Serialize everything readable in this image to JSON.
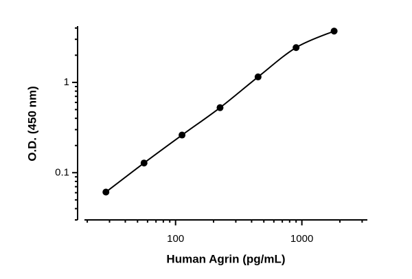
{
  "chart_data": {
    "type": "scatter",
    "x_label": "Human Agrin (pg/mL)",
    "y_label": "O.D. (450 nm)",
    "x": [
      28.1,
      56.3,
      112.5,
      225,
      450,
      900,
      1800
    ],
    "series": [
      {
        "values": [
          0.061,
          0.128,
          0.261,
          0.525,
          1.15,
          2.43,
          3.7
        ],
        "color": "#000000"
      }
    ],
    "xlim": [
      19,
      3300
    ],
    "ylim": [
      0.03,
      4.2
    ],
    "xticks": [
      100,
      1000
    ],
    "yticks": [
      0.1,
      1
    ],
    "xminorticks": [
      20,
      30,
      40,
      50,
      60,
      70,
      80,
      90,
      200,
      300,
      400,
      500,
      600,
      700,
      800,
      900,
      2000,
      3000
    ],
    "yminorticks": [
      0.03,
      0.04,
      0.05,
      0.06,
      0.07,
      0.08,
      0.09,
      0.2,
      0.3,
      0.4,
      0.5,
      0.6,
      0.7,
      0.8,
      0.9,
      2,
      3,
      4
    ],
    "xscale": "log",
    "yscale": "log",
    "fit_curve": true
  }
}
